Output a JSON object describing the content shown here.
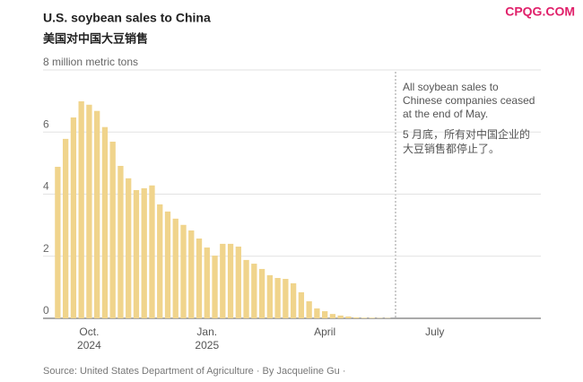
{
  "chart_data": {
    "type": "bar",
    "title": "U.S. soybean sales to China",
    "subtitle": "美国对中国大豆销售",
    "watermark": "CPQG.COM",
    "source": "Source: United States Department of Agriculture  ·  By Jacqueline Gu  ·",
    "annotation": {
      "text": "All soybean sales to Chinese companies ceased at the end of May.",
      "text_zh": "5 月底，所有对中国企业的大豆销售都停止了。"
    },
    "categories": [
      null,
      null,
      null,
      null,
      "Oct.\n2024",
      null,
      null,
      null,
      null,
      null,
      null,
      null,
      null,
      null,
      null,
      null,
      null,
      null,
      null,
      "Jan.\n2025",
      null,
      null,
      null,
      null,
      null,
      null,
      null,
      null,
      null,
      null,
      null,
      null,
      null,
      null,
      "April",
      null,
      null,
      null,
      null,
      null,
      null,
      null,
      null,
      null,
      null,
      null,
      null,
      null,
      "July",
      null,
      null,
      null,
      null,
      null,
      null,
      null,
      null,
      null,
      null,
      null,
      null,
      null
    ],
    "values": [
      4.88,
      5.78,
      6.47,
      6.99,
      6.88,
      6.68,
      6.16,
      5.69,
      4.91,
      4.51,
      4.13,
      4.19,
      4.28,
      3.67,
      3.44,
      3.21,
      3.01,
      2.83,
      2.57,
      2.28,
      2.02,
      2.4,
      2.4,
      2.31,
      1.88,
      1.76,
      1.59,
      1.39,
      1.3,
      1.27,
      1.13,
      0.84,
      0.55,
      0.32,
      0.23,
      0.14,
      0.09,
      0.06,
      0.03,
      0.02,
      0.02,
      0.01,
      0.01,
      null,
      null,
      null,
      null,
      null,
      null,
      null,
      null,
      null,
      null,
      null,
      null,
      null,
      null,
      null,
      null,
      null,
      null,
      null
    ],
    "color": "#f0d48c",
    "ylim": [
      0,
      8
    ],
    "yticks": [
      0,
      2,
      4,
      6,
      {
        "value": 8,
        "label": "8 million metric tons"
      }
    ],
    "grid": true
  }
}
